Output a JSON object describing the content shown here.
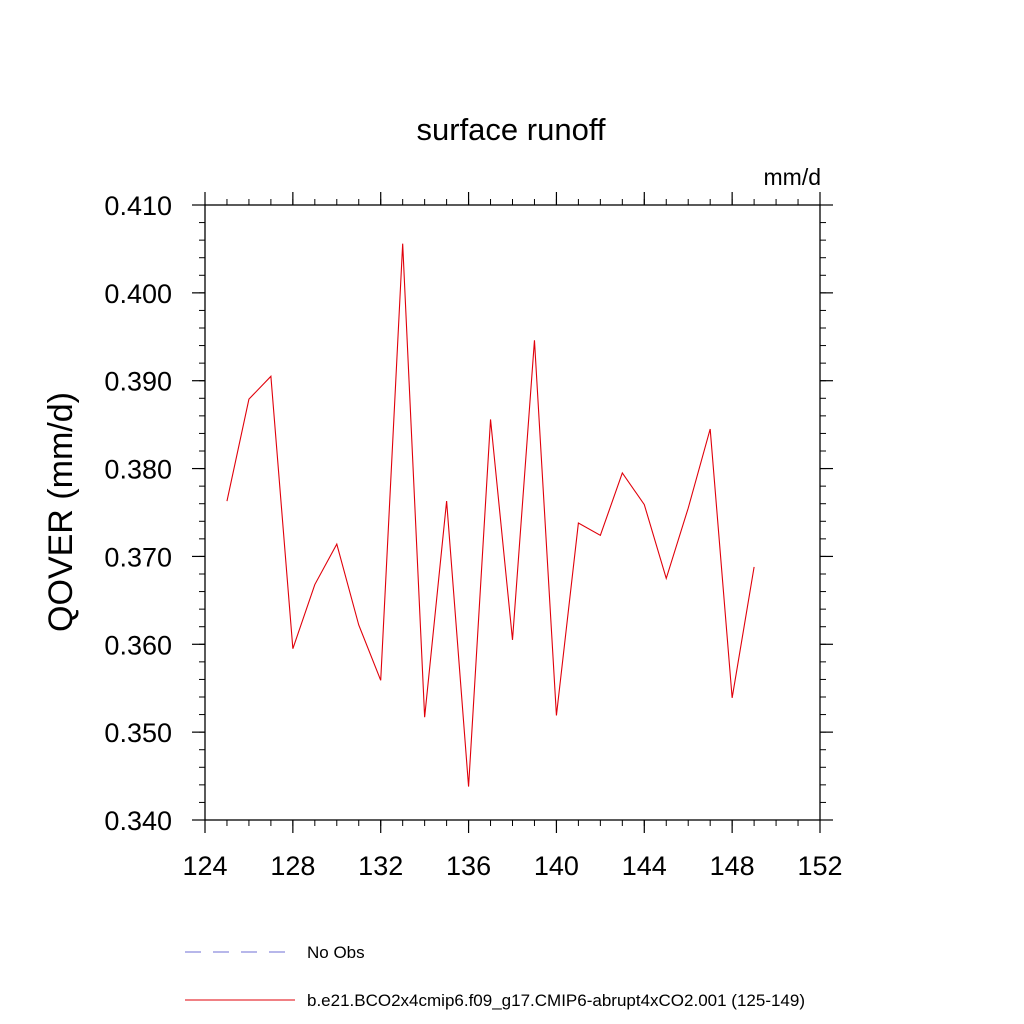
{
  "chart_data": {
    "type": "line",
    "title": "surface runoff",
    "units_label": "mm/d",
    "ylabel": "QOVER  (mm/d)",
    "xlabel": "",
    "xlim": [
      124,
      152
    ],
    "ylim": [
      0.34,
      0.41
    ],
    "xticks": [
      "124",
      "128",
      "132",
      "136",
      "140",
      "144",
      "148",
      "152"
    ],
    "yticks": [
      "0.340",
      "0.350",
      "0.360",
      "0.370",
      "0.380",
      "0.390",
      "0.400",
      "0.410"
    ],
    "x_minor_step": 1,
    "y_minor_step": 0.002,
    "grid": false,
    "legend_position": "bottom",
    "series": [
      {
        "name": "No Obs",
        "color": "#6f6fd6",
        "dash": "dashed",
        "x": [],
        "y": []
      },
      {
        "name": "b.e21.BCO2x4cmip6.f09_g17.CMIP6-abrupt4xCO2.001 (125-149)",
        "color": "#e0000a",
        "dash": "solid",
        "x": [
          125,
          126,
          127,
          128,
          129,
          130,
          131,
          132,
          133,
          134,
          135,
          136,
          137,
          138,
          139,
          140,
          141,
          142,
          143,
          144,
          145,
          146,
          147,
          148,
          149
        ],
        "y": [
          0.3763,
          0.3879,
          0.3905,
          0.3595,
          0.3668,
          0.3714,
          0.3622,
          0.3559,
          0.4056,
          0.3517,
          0.3763,
          0.3438,
          0.3856,
          0.3605,
          0.3946,
          0.3519,
          0.3738,
          0.3724,
          0.3795,
          0.3759,
          0.3675,
          0.3755,
          0.3845,
          0.3539,
          0.3688
        ]
      }
    ]
  }
}
